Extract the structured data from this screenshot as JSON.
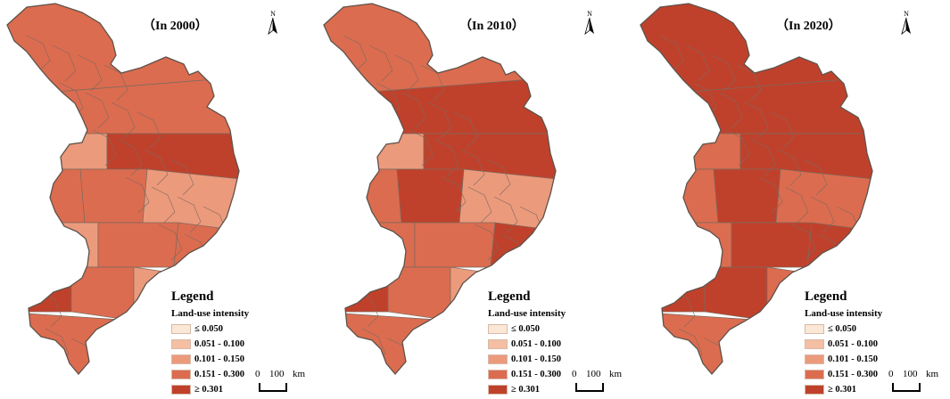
{
  "panels": [
    {
      "title": "（In 2000）",
      "shading": [
        3,
        3,
        2,
        4,
        3,
        3,
        2,
        2,
        3,
        3,
        4,
        3,
        2,
        3
      ]
    },
    {
      "title": "（In 2010）",
      "shading": [
        3,
        4,
        2,
        4,
        3,
        4,
        2,
        3,
        3,
        4,
        4,
        3,
        2,
        3
      ]
    },
    {
      "title": "（In 2020）",
      "shading": [
        4,
        4,
        3,
        4,
        3,
        4,
        3,
        3,
        4,
        4,
        4,
        4,
        3,
        3
      ]
    }
  ],
  "north_label": "N",
  "legend": {
    "title": "Legend",
    "subtitle": "Land-use intensity",
    "items": [
      {
        "label": "≤ 0.050",
        "color": "#fbe7d5"
      },
      {
        "label": "0.051 - 0.100",
        "color": "#f5bfa3"
      },
      {
        "label": "0.101 - 0.150",
        "color": "#ec9a7c"
      },
      {
        "label": "0.151 - 0.300",
        "color": "#dc6c4f"
      },
      {
        "label": "≥ 0.301",
        "color": "#c0412b"
      }
    ]
  },
  "scale": {
    "start": "0",
    "end": "100",
    "unit": "km"
  },
  "border_color": "#7a6a60"
}
